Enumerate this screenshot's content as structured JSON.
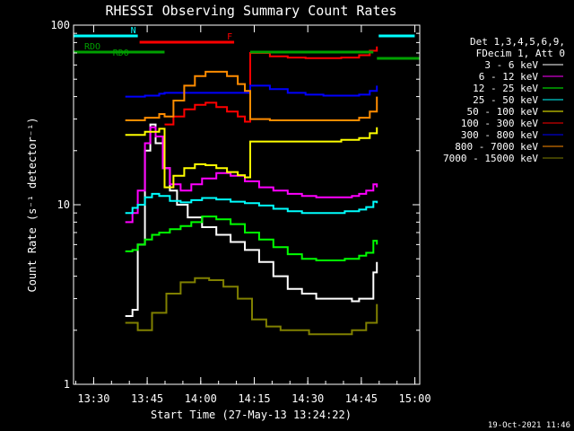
{
  "chart_data": {
    "type": "line",
    "title": "RHESSI Observing Summary Count Rates",
    "xlabel": "Start Time (27-May-13 13:24:22)",
    "ylabel": "Count Rate (s⁻¹ detector⁻¹)",
    "yscale": "log",
    "ylim": [
      1,
      100
    ],
    "xlim_minutes": [
      0,
      97
    ],
    "x_tick_labels": [
      "13:30",
      "13:45",
      "14:00",
      "14:15",
      "14:30",
      "14:45",
      "15:00"
    ],
    "x_tick_minutes": [
      5.633,
      20.633,
      35.633,
      50.633,
      65.633,
      80.633,
      95.633
    ],
    "y_tick_labels": [
      "1",
      "10",
      "100"
    ],
    "y_tick_values": [
      1,
      10,
      100
    ],
    "legend_header": [
      "Det 1,3,4,5,6,9,",
      "FDecim 1, Att 0"
    ],
    "legend_position": "right",
    "series": [
      {
        "name": "3 - 6 keV",
        "color": "#ffffff",
        "x": [
          14.5,
          16.5,
          18,
          20,
          21.5,
          23,
          25,
          27,
          29,
          32,
          36,
          40,
          44,
          48,
          52,
          56,
          60,
          64,
          68,
          72,
          75,
          78,
          80,
          82,
          84,
          85
        ],
        "y": [
          2.4,
          2.6,
          6,
          20,
          28,
          22,
          16,
          12,
          10,
          8.5,
          7.5,
          6.8,
          6.2,
          5.6,
          4.8,
          4.0,
          3.4,
          3.2,
          3.0,
          3.0,
          3.0,
          2.9,
          3.0,
          3.0,
          4.2,
          4.8
        ]
      },
      {
        "name": "6 - 12 keV",
        "color": "#ff00ff",
        "x": [
          14.5,
          16.5,
          18,
          20,
          21.5,
          23,
          25,
          27,
          30,
          33,
          36,
          40,
          44,
          48,
          52,
          56,
          60,
          64,
          68,
          72,
          75,
          78,
          80,
          82,
          84,
          85
        ],
        "y": [
          8,
          9,
          12,
          22,
          27,
          24,
          16,
          13,
          12,
          13,
          14,
          15,
          14.5,
          13.5,
          12.5,
          12,
          11.5,
          11.2,
          11,
          11,
          11,
          11.2,
          11.5,
          12,
          13,
          12.5
        ]
      },
      {
        "name": "12 - 25 keV",
        "color": "#00ff00",
        "x": [
          14.5,
          16.5,
          18,
          20,
          22,
          24,
          27,
          30,
          33,
          36,
          40,
          44,
          48,
          52,
          56,
          60,
          64,
          68,
          72,
          76,
          80,
          82,
          84,
          85
        ],
        "y": [
          5.5,
          5.6,
          6,
          6.4,
          6.8,
          7,
          7.3,
          7.6,
          8,
          8.6,
          8.3,
          7.8,
          7,
          6.4,
          5.8,
          5.3,
          5.0,
          4.9,
          4.9,
          5.0,
          5.2,
          5.4,
          6.3,
          6.0
        ]
      },
      {
        "name": "25 - 50 keV",
        "color": "#00ffff",
        "x": [
          14.5,
          16.5,
          18,
          20,
          22,
          24,
          27,
          30,
          33,
          36,
          40,
          44,
          48,
          52,
          56,
          60,
          64,
          68,
          72,
          76,
          80,
          82,
          84,
          85
        ],
        "y": [
          9,
          9.6,
          10,
          11,
          11.5,
          11.2,
          10.5,
          10.3,
          10.6,
          10.9,
          10.7,
          10.4,
          10.2,
          9.9,
          9.5,
          9.2,
          9.0,
          9.0,
          9.0,
          9.2,
          9.4,
          9.7,
          10.4,
          10.2
        ]
      },
      {
        "name": "50 - 100 keV",
        "color": "#ffff00",
        "x": [
          14.5,
          20,
          24,
          25.5,
          28,
          31,
          34,
          37,
          40,
          43,
          46,
          48,
          49.5,
          51,
          55,
          60,
          65,
          70,
          75,
          80,
          83,
          85
        ],
        "y": [
          24.5,
          25.5,
          26.5,
          12.5,
          14.5,
          16,
          16.8,
          16.6,
          16.0,
          15.2,
          14.6,
          14.2,
          22.5,
          22.5,
          22.5,
          22.5,
          22.5,
          22.5,
          23,
          23.5,
          25,
          27
        ]
      },
      {
        "name": "100 - 300 keV",
        "color": "#ff0000",
        "x": [
          25.5,
          28,
          31,
          34,
          37,
          40,
          43,
          46,
          48,
          49.5,
          55,
          60,
          65,
          70,
          75,
          80,
          83,
          85
        ],
        "y": [
          28,
          31,
          34,
          36,
          37,
          35,
          33,
          31,
          29,
          70,
          67,
          66,
          65.5,
          65.5,
          66,
          68,
          72,
          76
        ]
      },
      {
        "name": "300 - 800 keV",
        "color": "#0000ff",
        "x": [
          14.5,
          20,
          24,
          25.5,
          49.5,
          55,
          60,
          65,
          70,
          75,
          80,
          83,
          85
        ],
        "y": [
          40,
          40.5,
          41.5,
          42,
          46,
          44,
          42,
          41,
          40.5,
          40.5,
          41,
          43,
          46
        ]
      },
      {
        "name": "800 - 7000 keV",
        "color": "#ff8c00",
        "x": [
          14.5,
          20,
          24,
          25.5,
          28,
          31,
          34,
          37,
          40,
          43,
          46,
          48,
          49.5,
          55,
          60,
          65,
          70,
          75,
          80,
          83,
          85
        ],
        "y": [
          29.5,
          30.5,
          32,
          31,
          38,
          46,
          52,
          55,
          55,
          52,
          47,
          43,
          30,
          29.5,
          29.5,
          29.5,
          29.5,
          29.5,
          30.5,
          33,
          40
        ]
      },
      {
        "name": "7000 - 15000 keV",
        "color": "#808000",
        "x": [
          14.5,
          18,
          22,
          26,
          30,
          34,
          38,
          42,
          46,
          50,
          54,
          58,
          62,
          66,
          70,
          74,
          78,
          82,
          85
        ],
        "y": [
          2.2,
          2.0,
          2.5,
          3.2,
          3.7,
          3.9,
          3.8,
          3.5,
          3.0,
          2.3,
          2.1,
          2.0,
          2.0,
          1.9,
          1.9,
          1.9,
          2.0,
          2.2,
          2.8
        ]
      }
    ],
    "flag_bars": [
      {
        "label": "N",
        "color": "#00ffff",
        "segments": [
          [
            0,
            18
          ],
          [
            85.5,
            95.6
          ]
        ]
      },
      {
        "label": "F",
        "color": "#ff0000",
        "segments": [
          [
            18.5,
            45
          ]
        ]
      },
      {
        "label": "RDO",
        "color": "#00a000",
        "label_x": 3,
        "segments": [
          [
            0,
            25.5
          ],
          [
            49.5,
            84
          ]
        ]
      },
      {
        "label": "RDO",
        "color": "#00a000",
        "label_x": 11,
        "segments": [
          [
            85,
            97
          ]
        ]
      }
    ],
    "grid": false
  },
  "timestamp": "19-Oct-2021 11:46"
}
